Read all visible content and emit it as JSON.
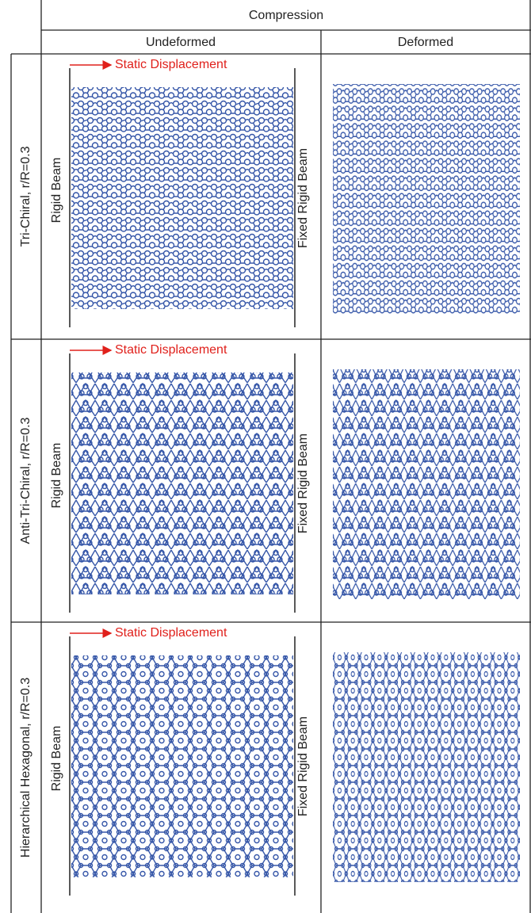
{
  "header": {
    "title": "Compression",
    "columns": [
      "Undeformed",
      "Deformed"
    ]
  },
  "rows": [
    {
      "label": "Tri-Chiral, r/R=0.3",
      "displacement": "Static Displacement",
      "left_beam": "Rigid Beam",
      "right_beam": "Fixed Rigid Beam"
    },
    {
      "label": "Anti-Tri-Chiral, r/R=0.3",
      "displacement": "Static Displacement",
      "left_beam": "Rigid Beam",
      "right_beam": "Fixed Rigid Beam"
    },
    {
      "label": "Hierarchical Hexagonal, r/R=0.3",
      "displacement": "Static Displacement",
      "left_beam": "Rigid Beam",
      "right_beam": "Fixed Rigid Beam"
    }
  ]
}
